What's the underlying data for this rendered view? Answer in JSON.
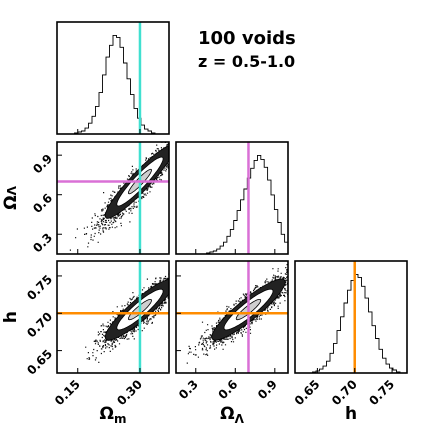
{
  "chart_data": {
    "type": "corner",
    "annotations": [
      "100 voids",
      "z = 0.5-1.0"
    ],
    "parameters": [
      {
        "label": "Ω",
        "sub": "m",
        "range": [
          0.1,
          0.37
        ],
        "ticks": [
          0.15,
          0.3
        ],
        "tick_labels": [
          "0.15",
          "0.30"
        ],
        "truth": 0.3,
        "truth_color": "#40e0d0"
      },
      {
        "label": "Ω",
        "sub": "Λ",
        "range": [
          0.15,
          1.0
        ],
        "ticks": [
          0.3,
          0.6,
          0.9
        ],
        "tick_labels": [
          "0.3",
          "0.6",
          "0.9"
        ],
        "truth": 0.7,
        "truth_color": "#da70d6"
      },
      {
        "label": "h",
        "sub": "",
        "range": [
          0.62,
          0.77
        ],
        "ticks": [
          0.65,
          0.7,
          0.75
        ],
        "tick_labels": [
          "0.65",
          "0.70",
          "0.75"
        ],
        "truth": 0.7,
        "truth_color": "#ff8c00"
      }
    ],
    "histograms": [
      {
        "param": 0,
        "bin_edges": [
          0.1,
          0.37
        ],
        "counts": [
          0,
          0,
          0,
          0,
          0,
          1,
          2,
          3,
          6,
          11,
          18,
          28,
          42,
          60,
          78,
          90,
          100,
          98,
          88,
          72,
          56,
          40,
          26,
          16,
          9,
          5,
          3,
          1,
          0,
          0,
          0,
          0
        ]
      },
      {
        "param": 1,
        "bin_edges": [
          0.15,
          1.0
        ],
        "counts": [
          0,
          0,
          0,
          0,
          0,
          0,
          0,
          0,
          0,
          1,
          2,
          3,
          5,
          8,
          12,
          18,
          25,
          34,
          44,
          55,
          66,
          77,
          87,
          95,
          100,
          96,
          88,
          75,
          60,
          45,
          32,
          20,
          12
        ]
      },
      {
        "param": 2,
        "bin_edges": [
          0.62,
          0.77
        ],
        "counts": [
          0,
          0,
          0,
          0,
          0,
          1,
          2,
          4,
          7,
          12,
          20,
          30,
          43,
          57,
          71,
          84,
          94,
          100,
          97,
          88,
          76,
          62,
          48,
          35,
          24,
          15,
          9,
          5,
          3,
          1,
          0,
          0
        ]
      }
    ],
    "pairs": [
      {
        "x_param": 0,
        "y_param": 1,
        "mean": [
          0.3,
          0.7
        ],
        "sd": [
          0.045,
          0.15
        ],
        "corr": 0.93
      },
      {
        "x_param": 0,
        "y_param": 2,
        "mean": [
          0.3,
          0.705
        ],
        "sd": [
          0.045,
          0.022
        ],
        "corr": 0.9
      },
      {
        "x_param": 1,
        "y_param": 2,
        "mean": [
          0.7,
          0.705
        ],
        "sd": [
          0.15,
          0.022
        ],
        "corr": 0.9
      }
    ],
    "contour_levels_sigma": [
      1,
      2,
      3
    ]
  }
}
